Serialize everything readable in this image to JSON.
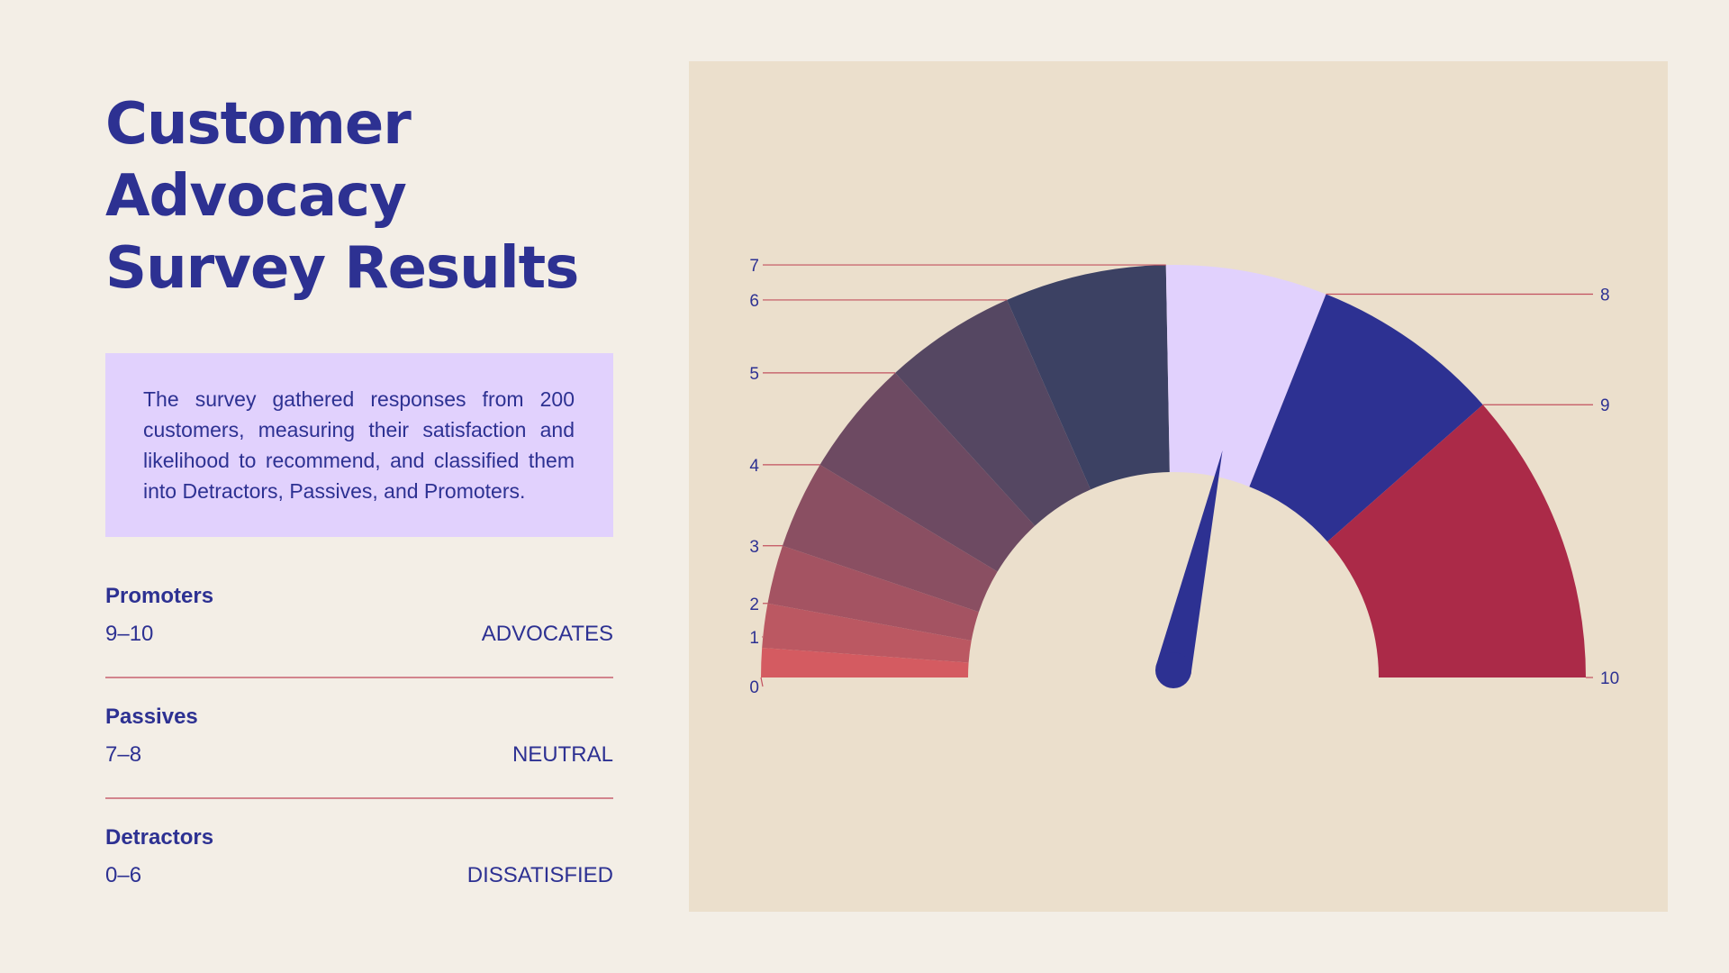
{
  "header": {
    "title_line1": "Customer",
    "title_line2": "Advocacy",
    "title_line3": "Survey Results"
  },
  "description": "The survey gathered responses from 200 customers, measuring their satisfaction and likelihood to recommend, and classified them into Detractors, Passives, and Promoters.",
  "categories": [
    {
      "name": "Promoters",
      "range": "9–10",
      "label": "ADVOCATES"
    },
    {
      "name": "Passives",
      "range": "7–8",
      "label": "NEUTRAL"
    },
    {
      "name": "Detractors",
      "range": "0–6",
      "label": "DISSATISFIED"
    }
  ],
  "colors": {
    "background": "#f3eee6",
    "panel": "#ebdfcc",
    "accent": "#2d3192",
    "description_box": "#e1d1fd",
    "rule": "#d2848d",
    "leader_line": "#c2505e",
    "needle": "#2d3192"
  },
  "chart_data": {
    "type": "gauge",
    "score_labels": [
      "0",
      "1",
      "2",
      "3",
      "4",
      "5",
      "6",
      "7",
      "8",
      "9",
      "10"
    ],
    "segments": [
      {
        "score": "1",
        "share": 2,
        "color": "#d45b61"
      },
      {
        "score": "2",
        "share": 3,
        "color": "#bb5862"
      },
      {
        "score": "3",
        "share": 4,
        "color": "#a45362"
      },
      {
        "score": "4",
        "share": 6,
        "color": "#8a4f62"
      },
      {
        "score": "5",
        "share": 8,
        "color": "#6d4a62"
      },
      {
        "score": "6",
        "share": 9,
        "color": "#554762"
      },
      {
        "score": "7",
        "share": 11,
        "color": "#3c4163"
      },
      {
        "score": "8",
        "share": 11,
        "color": "#e1d1fd"
      },
      {
        "score": "9",
        "share": 13,
        "color": "#2d3192"
      },
      {
        "score": "10",
        "share": 20,
        "color": "#ab2a48"
      }
    ],
    "needle_value_percent": 57,
    "title": "",
    "xlabel": "",
    "ylabel": ""
  }
}
